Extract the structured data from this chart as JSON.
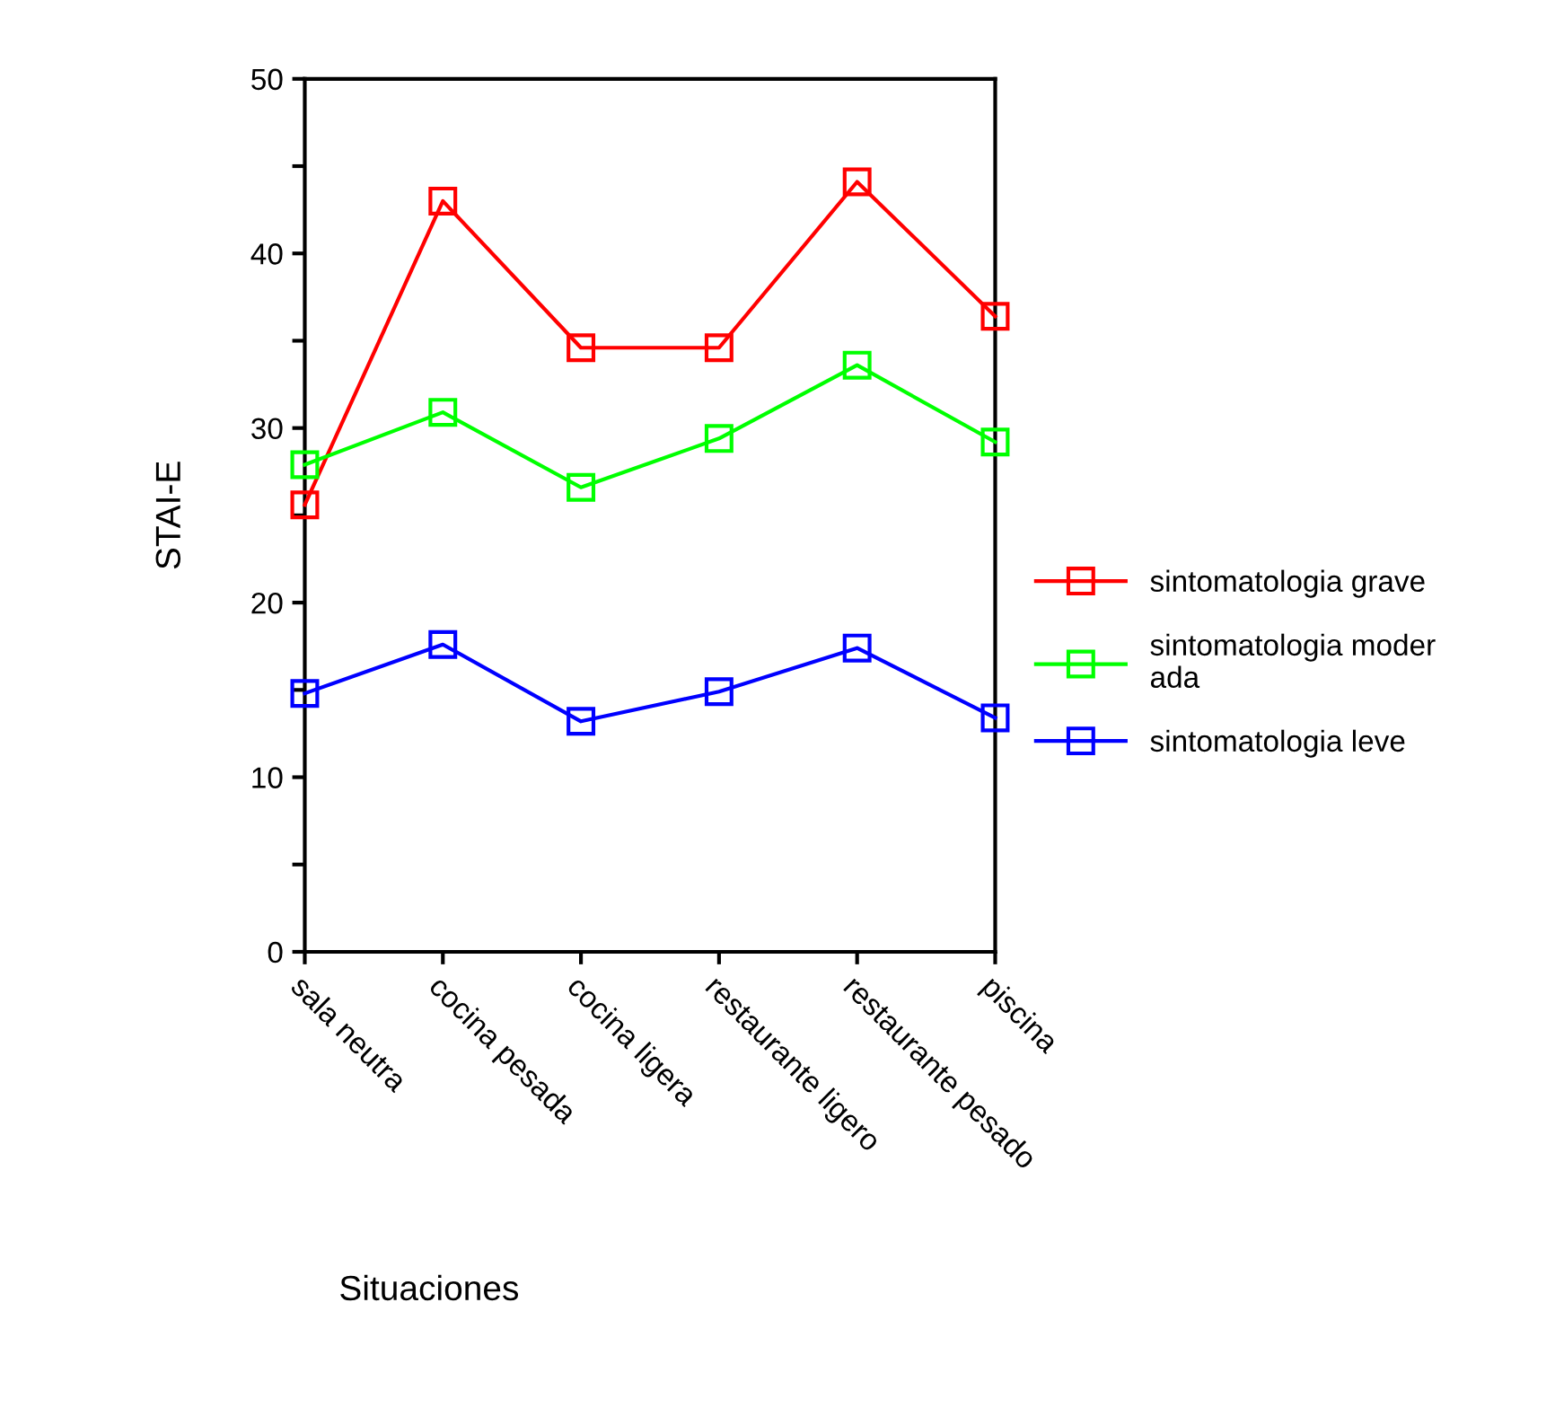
{
  "chart_data": {
    "type": "line",
    "xlabel": "Situaciones",
    "ylabel": "STAI-E",
    "categories": [
      "sala neutra",
      "cocina pesada",
      "cocina ligera",
      "restaurante ligero",
      "restaurante pesado",
      "piscina"
    ],
    "series": [
      {
        "name": "sintomatologia grave",
        "color": "#ff0000",
        "values": [
          25.6,
          43.0,
          34.6,
          34.6,
          44.1,
          36.4
        ]
      },
      {
        "name": "sintomatologia moder\nada",
        "color": "#00ff00",
        "values": [
          27.9,
          30.9,
          26.6,
          29.4,
          33.6,
          29.2
        ]
      },
      {
        "name": "sintomatologia leve",
        "color": "#0000ff",
        "values": [
          14.8,
          17.6,
          13.2,
          14.9,
          17.4,
          13.4
        ]
      }
    ],
    "ylim": [
      0,
      50
    ],
    "yticks": [
      0,
      {
        "value": 5,
        "label": null
      },
      10,
      {
        "value": 15,
        "label": null
      },
      20,
      {
        "value": 25,
        "label": null
      },
      30,
      {
        "value": 35,
        "label": null
      },
      40,
      {
        "value": 45,
        "label": null
      },
      50
    ],
    "marker": "square",
    "line_style": "solid",
    "grid": false,
    "legend": "right"
  }
}
